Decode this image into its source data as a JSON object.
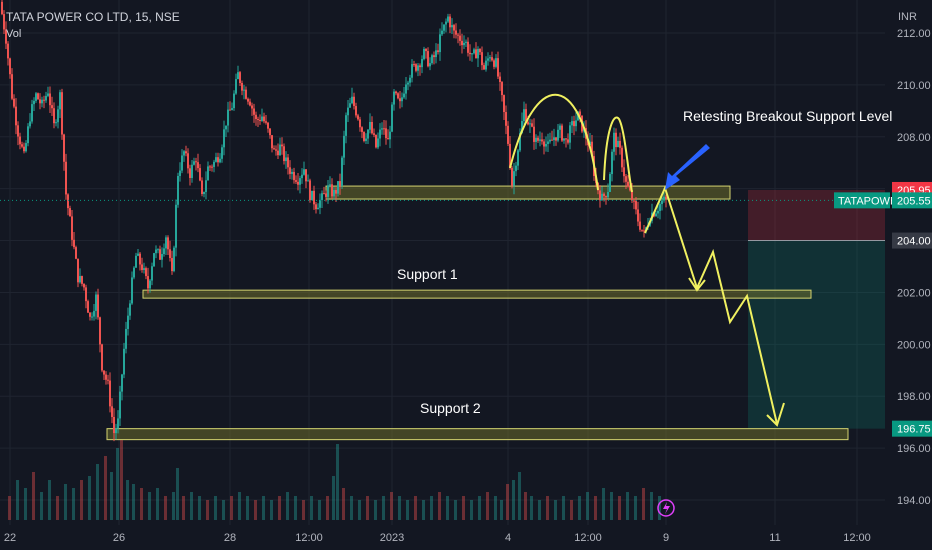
{
  "chart_data": {
    "type": "candlestick",
    "title": "TATA POWER CO LTD, 15, NSE",
    "indicator": "Vol",
    "currency": "INR",
    "symbol": "TATAPOWER",
    "ylim": [
      193.3,
      213.2
    ],
    "y_ticks": [
      212.0,
      210.0,
      208.0,
      206.0,
      204.0,
      202.0,
      200.0,
      198.0,
      196.0,
      194.0
    ],
    "x_ticks": [
      "22",
      "26",
      "28",
      "12:00",
      "2023",
      "4",
      "12:00",
      "9",
      "11",
      "12:00"
    ],
    "price_labels": {
      "stop": "205.95",
      "current": "205.55",
      "entry": "204.00",
      "target": "196.75"
    },
    "annotations": {
      "retest": "Retesting Breakout Support Level",
      "support1": "Support 1",
      "support2": "Support 2"
    },
    "levels": {
      "breakout_zone": [
        205.6,
        206.1
      ],
      "support1": 202.0,
      "support2": 196.6
    },
    "colors": {
      "up": "#26a69a",
      "down": "#ef5350",
      "zone_fill": "#6b6b2a",
      "zone_stroke": "#d4d470",
      "arrow": "#f0f060",
      "stop_badge": "#f23645",
      "current_badge": "#089981",
      "target_badge": "#089981"
    },
    "price_path": [
      [
        0,
        213.2
      ],
      [
        6,
        211.8
      ],
      [
        12,
        209.6
      ],
      [
        18,
        208.2
      ],
      [
        24,
        207.2
      ],
      [
        30,
        208.8
      ],
      [
        36,
        209.6
      ],
      [
        42,
        209.2
      ],
      [
        48,
        209.8
      ],
      [
        54,
        208.4
      ],
      [
        60,
        209.6
      ],
      [
        66,
        205.8
      ],
      [
        72,
        204.2
      ],
      [
        78,
        202.6
      ],
      [
        84,
        202.2
      ],
      [
        90,
        201.0
      ],
      [
        96,
        201.8
      ],
      [
        102,
        199.2
      ],
      [
        108,
        198.4
      ],
      [
        114,
        196.6
      ],
      [
        118,
        197.0
      ],
      [
        124,
        199.8
      ],
      [
        130,
        201.8
      ],
      [
        136,
        203.4
      ],
      [
        142,
        203.0
      ],
      [
        148,
        202.2
      ],
      [
        154,
        203.6
      ],
      [
        160,
        203.4
      ],
      [
        166,
        204.2
      ],
      [
        172,
        202.6
      ],
      [
        178,
        206.6
      ],
      [
        184,
        207.4
      ],
      [
        190,
        206.6
      ],
      [
        196,
        207.2
      ],
      [
        202,
        205.6
      ],
      [
        208,
        206.8
      ],
      [
        214,
        207.0
      ],
      [
        220,
        207.4
      ],
      [
        226,
        208.6
      ],
      [
        232,
        209.2
      ],
      [
        238,
        210.4
      ],
      [
        244,
        209.8
      ],
      [
        250,
        209.4
      ],
      [
        256,
        208.6
      ],
      [
        262,
        208.8
      ],
      [
        268,
        208.2
      ],
      [
        274,
        207.4
      ],
      [
        280,
        207.6
      ],
      [
        286,
        207.0
      ],
      [
        292,
        206.6
      ],
      [
        298,
        206.4
      ],
      [
        304,
        206.8
      ],
      [
        310,
        205.8
      ],
      [
        316,
        205.4
      ],
      [
        322,
        205.6
      ],
      [
        328,
        206.0
      ],
      [
        334,
        205.8
      ],
      [
        340,
        206.2
      ],
      [
        346,
        208.8
      ],
      [
        352,
        209.4
      ],
      [
        358,
        208.8
      ],
      [
        364,
        208.0
      ],
      [
        370,
        208.4
      ],
      [
        376,
        207.6
      ],
      [
        382,
        208.4
      ],
      [
        388,
        207.8
      ],
      [
        394,
        209.6
      ],
      [
        400,
        209.2
      ],
      [
        406,
        210.2
      ],
      [
        412,
        210.6
      ],
      [
        418,
        210.8
      ],
      [
        424,
        211.2
      ],
      [
        430,
        210.8
      ],
      [
        436,
        211.2
      ],
      [
        442,
        212.0
      ],
      [
        448,
        212.6
      ],
      [
        454,
        212.0
      ],
      [
        460,
        211.8
      ],
      [
        466,
        211.6
      ],
      [
        472,
        211.0
      ],
      [
        478,
        211.4
      ],
      [
        484,
        210.6
      ],
      [
        490,
        211.2
      ],
      [
        496,
        210.8
      ],
      [
        502,
        209.4
      ],
      [
        508,
        207.8
      ],
      [
        512,
        206.2
      ],
      [
        518,
        207.6
      ],
      [
        524,
        209.0
      ],
      [
        530,
        208.4
      ],
      [
        536,
        207.8
      ],
      [
        542,
        208.0
      ],
      [
        548,
        207.6
      ],
      [
        554,
        208.0
      ],
      [
        560,
        208.2
      ],
      [
        566,
        207.8
      ],
      [
        572,
        208.4
      ],
      [
        578,
        208.8
      ],
      [
        584,
        208.2
      ],
      [
        590,
        207.6
      ],
      [
        596,
        206.2
      ],
      [
        602,
        205.6
      ],
      [
        608,
        206.0
      ],
      [
        614,
        208.0
      ],
      [
        620,
        207.4
      ],
      [
        626,
        206.2
      ],
      [
        632,
        205.6
      ],
      [
        638,
        204.8
      ],
      [
        644,
        204.2
      ],
      [
        650,
        205.0
      ],
      [
        656,
        205.2
      ],
      [
        662,
        205.5
      ],
      [
        666,
        205.55
      ]
    ],
    "volume": [
      [
        8,
        0.3
      ],
      [
        16,
        0.5
      ],
      [
        24,
        0.4
      ],
      [
        32,
        0.6
      ],
      [
        40,
        0.35
      ],
      [
        48,
        0.5
      ],
      [
        56,
        0.3
      ],
      [
        64,
        0.45
      ],
      [
        72,
        0.4
      ],
      [
        80,
        0.5
      ],
      [
        88,
        0.55
      ],
      [
        96,
        0.7
      ],
      [
        104,
        0.8
      ],
      [
        110,
        0.6
      ],
      [
        116,
        0.9
      ],
      [
        120,
        1.0
      ],
      [
        126,
        0.5
      ],
      [
        132,
        0.45
      ],
      [
        140,
        0.4
      ],
      [
        148,
        0.35
      ],
      [
        156,
        0.4
      ],
      [
        164,
        0.3
      ],
      [
        172,
        0.35
      ],
      [
        176,
        0.65
      ],
      [
        182,
        0.3
      ],
      [
        190,
        0.35
      ],
      [
        198,
        0.3
      ],
      [
        206,
        0.25
      ],
      [
        214,
        0.3
      ],
      [
        222,
        0.25
      ],
      [
        230,
        0.3
      ],
      [
        238,
        0.35
      ],
      [
        246,
        0.3
      ],
      [
        254,
        0.25
      ],
      [
        262,
        0.3
      ],
      [
        270,
        0.25
      ],
      [
        278,
        0.3
      ],
      [
        286,
        0.35
      ],
      [
        294,
        0.3
      ],
      [
        302,
        0.25
      ],
      [
        310,
        0.3
      ],
      [
        318,
        0.25
      ],
      [
        326,
        0.3
      ],
      [
        332,
        0.55
      ],
      [
        336,
        0.95
      ],
      [
        342,
        0.4
      ],
      [
        350,
        0.3
      ],
      [
        358,
        0.25
      ],
      [
        366,
        0.3
      ],
      [
        374,
        0.25
      ],
      [
        382,
        0.3
      ],
      [
        390,
        0.35
      ],
      [
        398,
        0.3
      ],
      [
        406,
        0.25
      ],
      [
        414,
        0.3
      ],
      [
        422,
        0.25
      ],
      [
        430,
        0.3
      ],
      [
        438,
        0.35
      ],
      [
        446,
        0.3
      ],
      [
        454,
        0.25
      ],
      [
        462,
        0.3
      ],
      [
        470,
        0.25
      ],
      [
        478,
        0.3
      ],
      [
        486,
        0.35
      ],
      [
        494,
        0.3
      ],
      [
        500,
        0.25
      ],
      [
        506,
        0.45
      ],
      [
        512,
        0.5
      ],
      [
        518,
        0.6
      ],
      [
        524,
        0.35
      ],
      [
        530,
        0.3
      ],
      [
        538,
        0.25
      ],
      [
        546,
        0.3
      ],
      [
        554,
        0.25
      ],
      [
        562,
        0.3
      ],
      [
        570,
        0.25
      ],
      [
        578,
        0.3
      ],
      [
        586,
        0.35
      ],
      [
        594,
        0.3
      ],
      [
        602,
        0.4
      ],
      [
        610,
        0.35
      ],
      [
        618,
        0.3
      ],
      [
        626,
        0.35
      ],
      [
        634,
        0.3
      ],
      [
        642,
        0.4
      ],
      [
        650,
        0.35
      ],
      [
        658,
        0.3
      ]
    ]
  }
}
